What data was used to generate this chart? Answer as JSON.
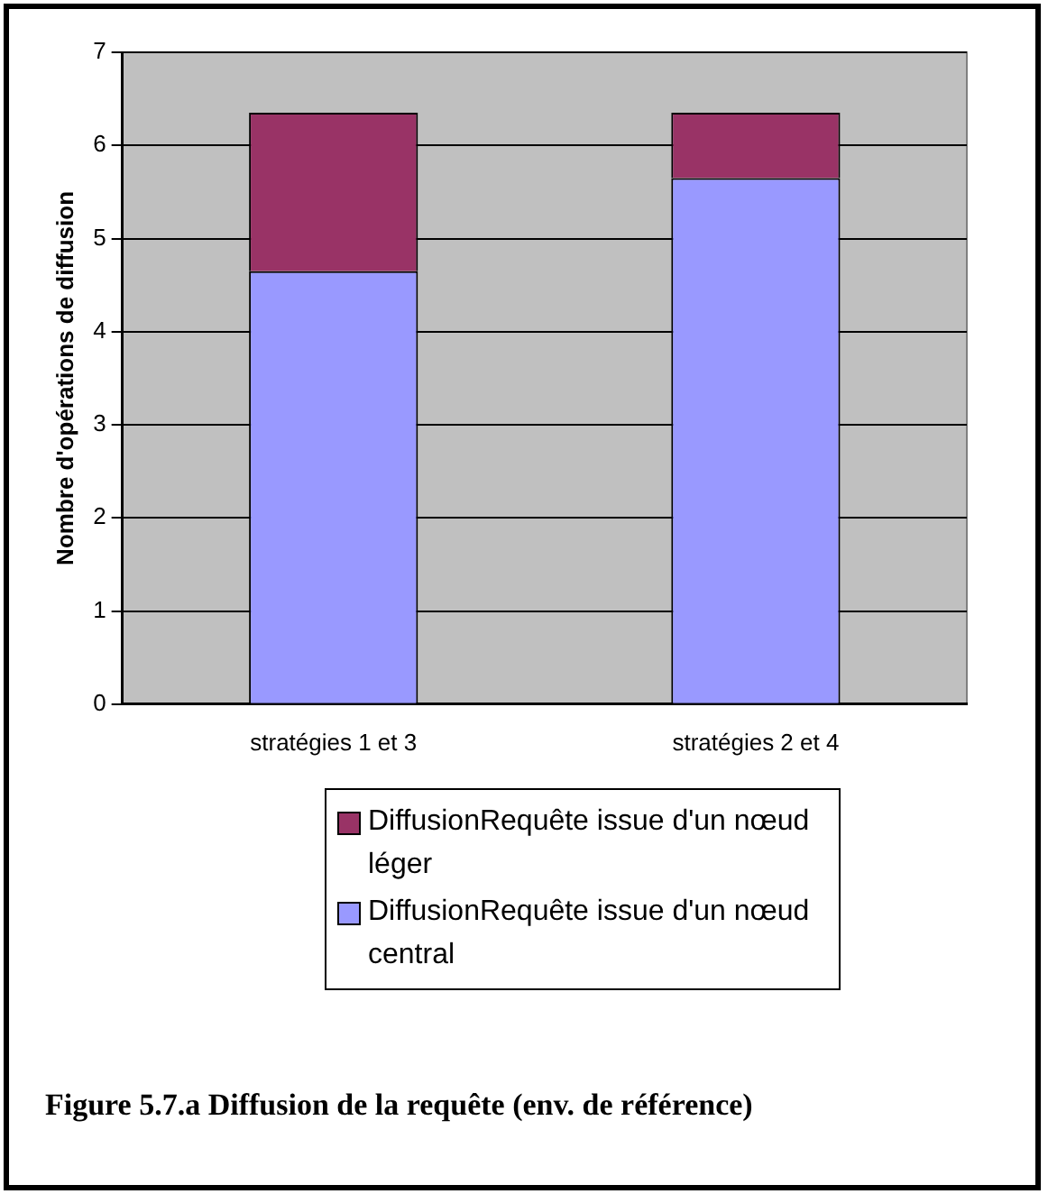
{
  "chart_data": {
    "type": "bar",
    "stacked": true,
    "title": "Figure 5.7.a Diffusion de la requête (env. de référence)",
    "ylabel": "Nombre d'opérations de diffusion",
    "categories": [
      "stratégies 1 et 3",
      "stratégies 2 et 4"
    ],
    "series": [
      {
        "name": "DiffusionRequête issue d'un nœud central",
        "color": "#9999ff",
        "values": [
          4.65,
          5.65
        ]
      },
      {
        "name": "DiffusionRequête issue d'un nœud léger",
        "color": "#993366",
        "values": [
          1.7,
          0.7
        ]
      }
    ],
    "ylim": [
      0,
      7
    ],
    "yticks": [
      0,
      1,
      2,
      3,
      4,
      5,
      6,
      7
    ],
    "grid": "y",
    "legend": "bottom"
  }
}
